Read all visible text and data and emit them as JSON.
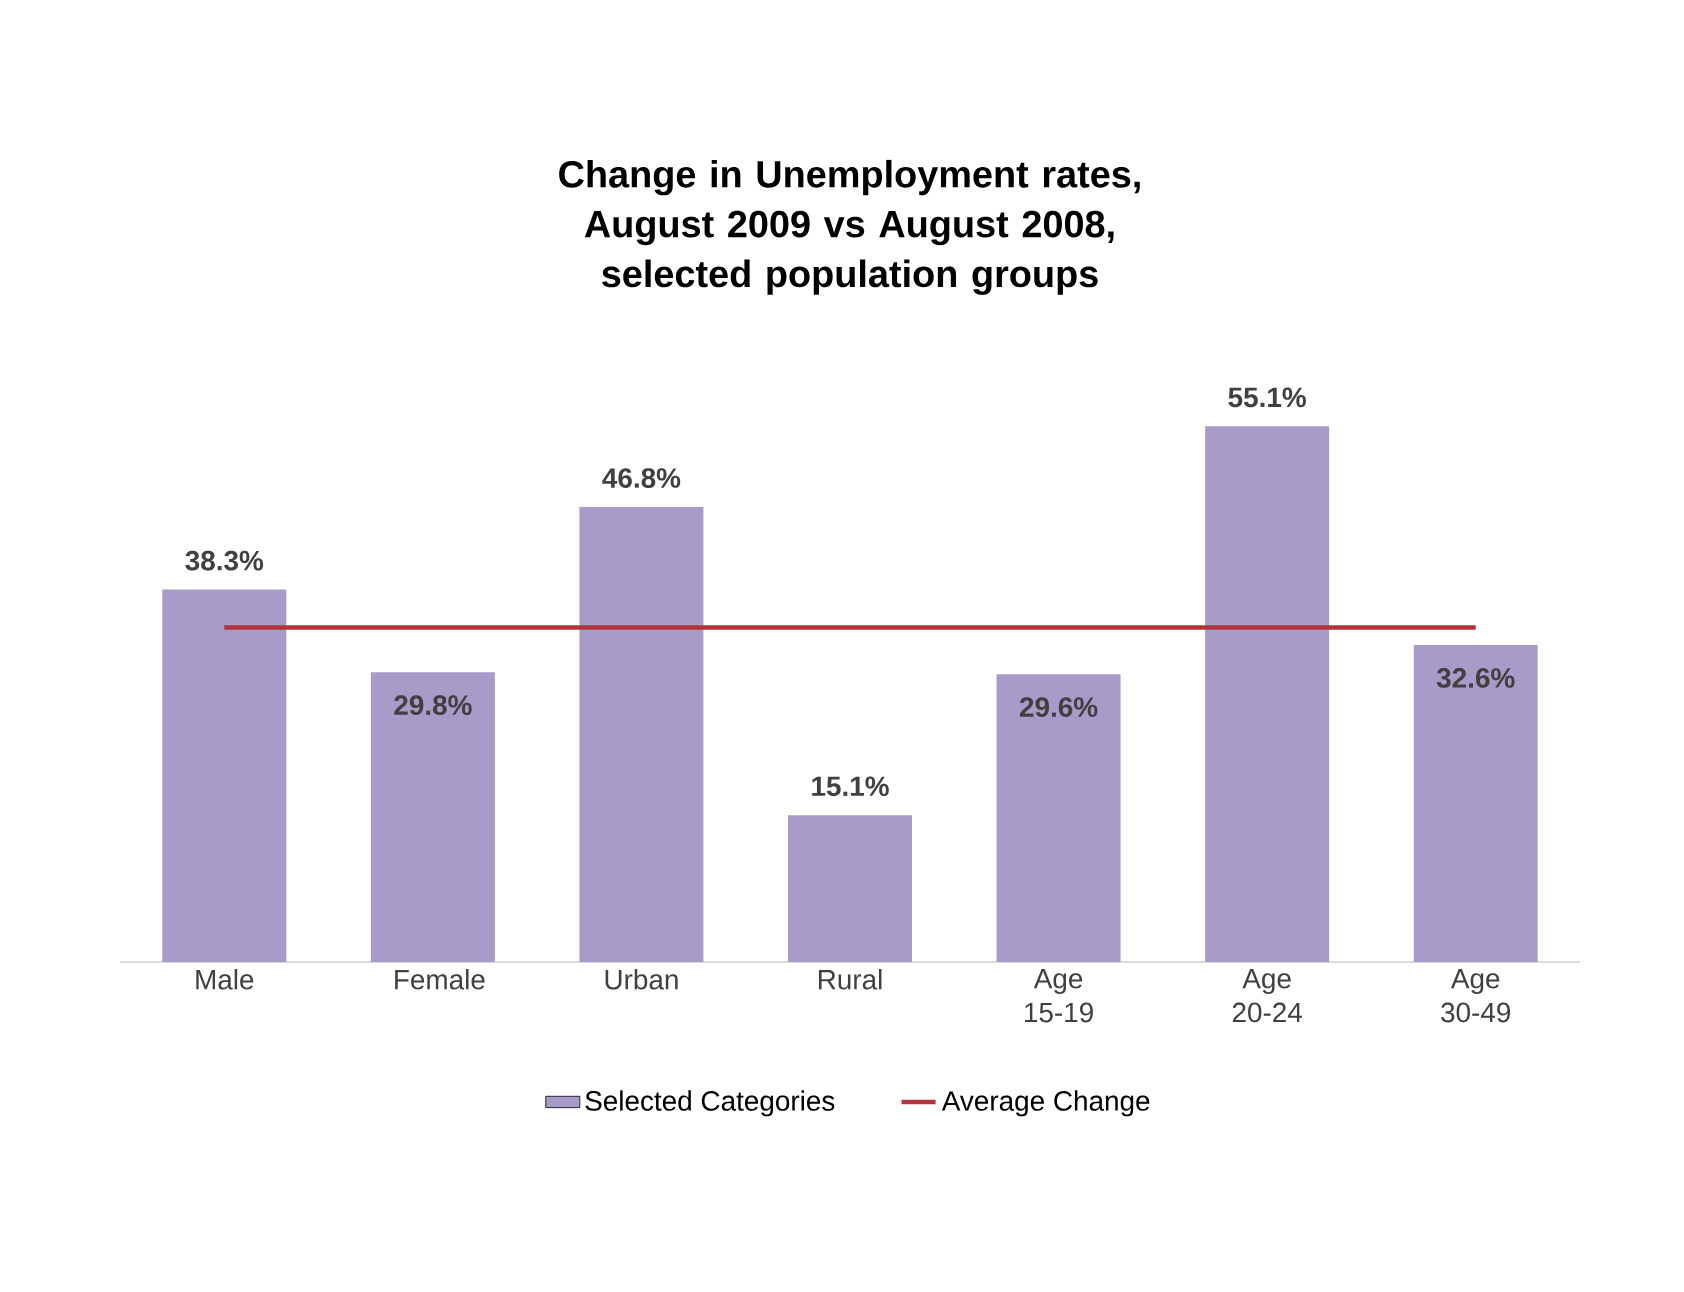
{
  "chart_data": {
    "type": "bar",
    "title": "Change in Unemployment rates, August 2009 vs August 2008, selected population groups",
    "categories": [
      "Male",
      "Female",
      "Urban",
      "Rural",
      "Age 15-19",
      "Age 20-24",
      "Age 30-49"
    ],
    "series": [
      {
        "name": "Selected Categories",
        "color": "#a99bc9",
        "values": [
          38.3,
          29.8,
          46.8,
          15.1,
          29.6,
          55.1,
          32.6
        ],
        "value_labels": [
          "38.3%",
          "29.8%",
          "46.8%",
          "15.1%",
          "29.6%",
          "55.1%",
          "32.6%"
        ]
      },
      {
        "name": "Average Change",
        "type": "line",
        "color": "#b2343a",
        "values": [
          34.4,
          34.4,
          34.4,
          34.4,
          34.4,
          34.4,
          34.4
        ]
      }
    ],
    "legend": "bottom"
  }
}
